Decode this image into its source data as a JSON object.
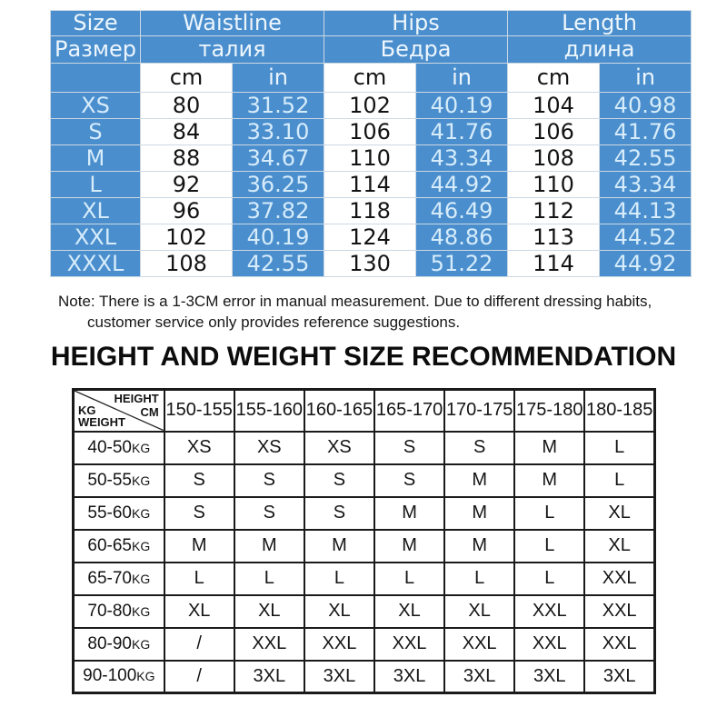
{
  "colors": {
    "table_blue": "#4a8ecd",
    "light_blue_text": "#d6ecfb",
    "header_text": "#edf6fd",
    "grid_line": "#ccd8e3",
    "border_black": "#1a1a1a"
  },
  "size_table": {
    "columns": [
      {
        "en": "Size",
        "ru": "Размер"
      },
      {
        "en": "Waistline",
        "ru": "талия"
      },
      {
        "en": "Hips",
        "ru": "Бедра"
      },
      {
        "en": "Length",
        "ru": "длина"
      }
    ],
    "unit_cm": "cm",
    "unit_in": "in",
    "rows": [
      {
        "size": "XS",
        "waist_cm": "80",
        "waist_in": "31.52",
        "hips_cm": "102",
        "hips_in": "40.19",
        "len_cm": "104",
        "len_in": "40.98"
      },
      {
        "size": "S",
        "waist_cm": "84",
        "waist_in": "33.10",
        "hips_cm": "106",
        "hips_in": "41.76",
        "len_cm": "106",
        "len_in": "41.76"
      },
      {
        "size": "M",
        "waist_cm": "88",
        "waist_in": "34.67",
        "hips_cm": "110",
        "hips_in": "43.34",
        "len_cm": "108",
        "len_in": "42.55"
      },
      {
        "size": "L",
        "waist_cm": "92",
        "waist_in": "36.25",
        "hips_cm": "114",
        "hips_in": "44.92",
        "len_cm": "110",
        "len_in": "43.34"
      },
      {
        "size": "XL",
        "waist_cm": "96",
        "waist_in": "37.82",
        "hips_cm": "118",
        "hips_in": "46.49",
        "len_cm": "112",
        "len_in": "44.13"
      },
      {
        "size": "XXL",
        "waist_cm": "102",
        "waist_in": "40.19",
        "hips_cm": "124",
        "hips_in": "48.86",
        "len_cm": "113",
        "len_in": "44.52"
      },
      {
        "size": "XXXL",
        "waist_cm": "108",
        "waist_in": "42.55",
        "hips_cm": "130",
        "hips_in": "51.22",
        "len_cm": "114",
        "len_in": "44.92"
      }
    ]
  },
  "note": {
    "line1": "Note: There is a 1-3CM error in manual measurement. Due to different dressing habits,",
    "line2": "customer service only provides reference suggestions."
  },
  "recommendation": {
    "title": "HEIGHT AND WEIGHT SIZE RECOMMENDATION",
    "corner": {
      "height": "HEIGHT",
      "cm": "CM",
      "kg": "KG",
      "weight": "WEIGHT"
    },
    "height_columns": [
      "150-155",
      "155-160",
      "160-165",
      "165-170",
      "170-175",
      "175-180",
      "180-185"
    ],
    "rows": [
      {
        "weight": "40-50KG",
        "sizes": [
          "XS",
          "XS",
          "XS",
          "S",
          "S",
          "M",
          "L"
        ]
      },
      {
        "weight": "50-55KG",
        "sizes": [
          "S",
          "S",
          "S",
          "S",
          "M",
          "M",
          "L"
        ]
      },
      {
        "weight": "55-60KG",
        "sizes": [
          "S",
          "S",
          "S",
          "M",
          "M",
          "L",
          "XL"
        ]
      },
      {
        "weight": "60-65KG",
        "sizes": [
          "M",
          "M",
          "M",
          "M",
          "M",
          "L",
          "XL"
        ]
      },
      {
        "weight": "65-70KG",
        "sizes": [
          "L",
          "L",
          "L",
          "L",
          "L",
          "L",
          "XXL"
        ]
      },
      {
        "weight": "70-80KG",
        "sizes": [
          "XL",
          "XL",
          "XL",
          "XL",
          "XL",
          "XXL",
          "XXL"
        ]
      },
      {
        "weight": "80-90KG",
        "sizes": [
          "/",
          "XXL",
          "XXL",
          "XXL",
          "XXL",
          "XXL",
          "XXL"
        ]
      },
      {
        "weight": "90-100KG",
        "sizes": [
          "/",
          "3XL",
          "3XL",
          "3XL",
          "3XL",
          "3XL",
          "3XL"
        ]
      }
    ]
  }
}
